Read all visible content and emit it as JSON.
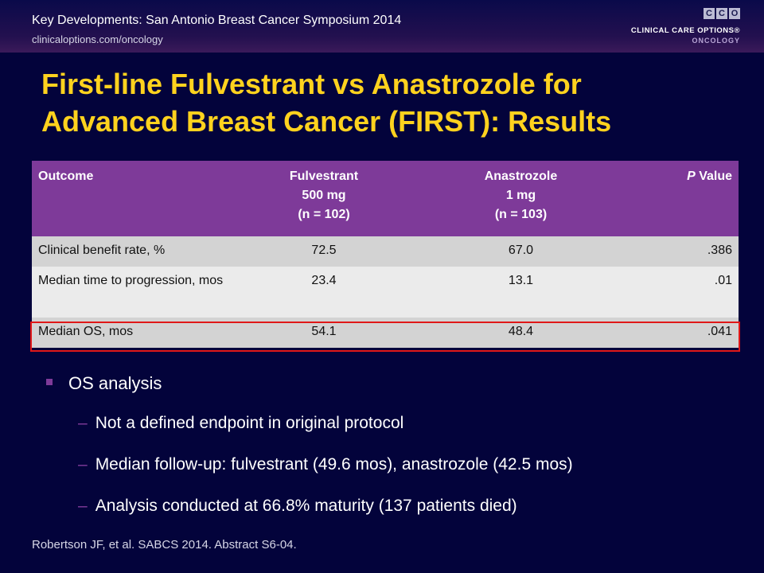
{
  "header": {
    "title": "Key Developments: San Antonio Breast Cancer Symposium 2014",
    "url": "clinicaloptions.com/oncology",
    "logo": {
      "letters": [
        "C",
        "C",
        "O"
      ],
      "line1": "CLINICAL CARE OPTIONS®",
      "line2": "ONCOLOGY"
    }
  },
  "slide_title": {
    "line1": "First-line Fulvestrant vs Anastrozole for",
    "line2": "Advanced Breast Cancer (FIRST): Results"
  },
  "table": {
    "headers": {
      "outcome": "Outcome",
      "fulvestrant": [
        "Fulvestrant",
        "500 mg",
        "(n = 102)"
      ],
      "anastrozole": [
        "Anastrozole",
        "1 mg",
        "(n = 103)"
      ],
      "p_italic": "P",
      "p_rest": " Value"
    },
    "rows": [
      {
        "outcome": "Clinical benefit rate, %",
        "fulvestrant": "72.5",
        "anastrozole": "67.0",
        "p": ".386"
      },
      {
        "outcome": "Median time to progression, mos",
        "fulvestrant": "23.4",
        "anastrozole": "13.1",
        "p": ".01"
      },
      {
        "outcome": "Median OS, mos",
        "fulvestrant": "54.1",
        "anastrozole": "48.4",
        "p": ".041"
      }
    ],
    "highlighted_row": 2,
    "colors": {
      "header": "#7e3a99",
      "highlight_border": "#e01818"
    }
  },
  "bullets": {
    "main": "OS analysis",
    "dash": "–",
    "subs": [
      "Not a defined endpoint in original protocol",
      "Median follow-up: fulvestrant (49.6 mos), anastrozole (42.5 mos)",
      "Analysis conducted at 66.8% maturity (137 patients died)"
    ]
  },
  "reference": "Robertson JF, et al. SABCS 2014. Abstract S6-04.",
  "colors": {
    "background": "#03033b",
    "title": "#ffd21e",
    "accent": "#7e3a99"
  }
}
